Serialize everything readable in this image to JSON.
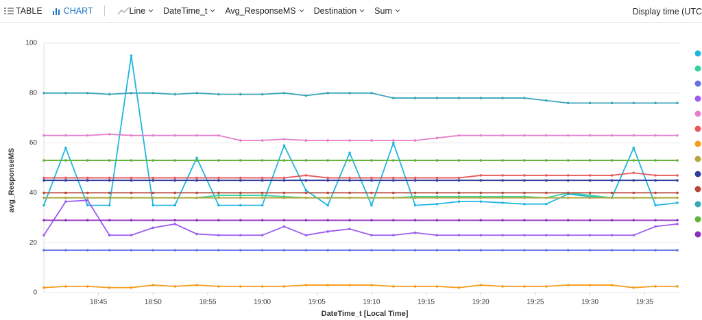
{
  "toolbar": {
    "table": "TABLE",
    "chart": "CHART",
    "chart_type": "Line",
    "x_column": "DateTime_t",
    "y_column": "Avg_ResponseMS",
    "split_column": "Destination",
    "aggregation": "Sum",
    "display_time": "Display time (UTC"
  },
  "chart_data": {
    "type": "line",
    "ylabel": "avg_ResponseMS",
    "xlabel": "DateTime_t [Local Time]",
    "x": [
      "18:40",
      "18:42",
      "18:44",
      "18:46",
      "18:48",
      "18:50",
      "18:52",
      "18:54",
      "18:56",
      "18:58",
      "19:00",
      "19:02",
      "19:04",
      "19:06",
      "19:08",
      "19:10",
      "19:12",
      "19:14",
      "19:16",
      "19:18",
      "19:20",
      "19:22",
      "19:24",
      "19:26",
      "19:28",
      "19:30",
      "19:32",
      "19:34",
      "19:36",
      "19:38"
    ],
    "xlim": [
      "18:40",
      "19:38"
    ],
    "xticks": [
      "18:45",
      "18:50",
      "18:55",
      "19:00",
      "19:05",
      "19:10",
      "19:15",
      "19:20",
      "19:25",
      "19:30",
      "19:35"
    ],
    "ylim": [
      0,
      100
    ],
    "yticks": [
      0,
      20,
      40,
      60,
      80,
      100
    ],
    "grid": true,
    "legend": "right",
    "series": [
      {
        "color": "#1fb6e0",
        "values": [
          35,
          58,
          35,
          35,
          95,
          35,
          35,
          54,
          35,
          35,
          35,
          59,
          41,
          35,
          56,
          35,
          60,
          35,
          35.5,
          36.5,
          36.5,
          36,
          35.5,
          35.5,
          39.5,
          38.5,
          38,
          58,
          35,
          36
        ]
      },
      {
        "color": "#34d399",
        "values": [
          38,
          38,
          38,
          38,
          38,
          38,
          38,
          38,
          39,
          39,
          39,
          38.5,
          38,
          38,
          38,
          38,
          38,
          38.5,
          38.5,
          38.5,
          38.5,
          38.5,
          38.5,
          38,
          40,
          39,
          38,
          38,
          38,
          38
        ]
      },
      {
        "color": "#6470e6",
        "values": [
          17,
          17,
          17,
          17,
          17,
          17,
          17,
          17,
          17,
          17,
          17,
          17,
          17,
          17,
          17,
          17,
          17,
          17,
          17,
          17,
          17,
          17,
          17,
          17,
          17,
          17,
          17,
          17,
          17,
          17
        ]
      },
      {
        "color": "#9b5cf0",
        "values": [
          23,
          36.5,
          37,
          23,
          23,
          26,
          27.5,
          23.5,
          23,
          23,
          23,
          26.5,
          23,
          24.5,
          25.5,
          23,
          23,
          24,
          23,
          23,
          23,
          23,
          23,
          23,
          23,
          23,
          23,
          23,
          26.5,
          27.5
        ]
      },
      {
        "color": "#e57fcb",
        "values": [
          63,
          63,
          63,
          63.5,
          63,
          63,
          63,
          63,
          63,
          61,
          61,
          61.5,
          61,
          61,
          61,
          61,
          61,
          61,
          62,
          63,
          63,
          63,
          63,
          63,
          63,
          63,
          63,
          63,
          63,
          63
        ]
      },
      {
        "color": "#e8575a",
        "values": [
          46,
          46,
          46,
          46,
          46,
          46,
          46,
          46,
          46,
          46,
          46,
          46,
          47,
          46,
          46,
          46,
          46,
          46,
          46,
          46,
          47,
          47,
          47,
          47,
          47,
          47,
          47,
          48,
          47,
          47
        ]
      },
      {
        "color": "#f59c1a",
        "values": [
          2,
          2.5,
          2.5,
          2,
          2,
          3,
          2.5,
          3,
          2.5,
          2.5,
          2.5,
          2.5,
          3,
          3,
          3,
          3,
          2.5,
          2.5,
          2.5,
          2,
          3,
          2.5,
          2.5,
          2.5,
          3,
          3,
          3,
          2,
          2.5,
          2.5
        ]
      },
      {
        "color": "#b5a642",
        "values": [
          38,
          38,
          38,
          38,
          38,
          38,
          38,
          38,
          38,
          38,
          38,
          38,
          38,
          38,
          38,
          38,
          38,
          38,
          38,
          38,
          38,
          38,
          38,
          38,
          38,
          38,
          38,
          38,
          38,
          38
        ]
      },
      {
        "color": "#2f3d9e",
        "values": [
          45,
          45,
          45,
          45,
          45,
          45,
          45,
          45,
          45,
          45,
          45,
          45,
          45,
          45,
          45,
          45,
          45,
          45,
          45,
          45,
          45,
          45,
          45,
          45,
          45,
          45,
          45,
          45,
          45,
          45
        ]
      },
      {
        "color": "#b5473a",
        "values": [
          40,
          40,
          40,
          40,
          40,
          40,
          40,
          40,
          40,
          40,
          40,
          40,
          40,
          40,
          40,
          40,
          40,
          40,
          40,
          40,
          40,
          40,
          40,
          40,
          40,
          40,
          40,
          40,
          40,
          40
        ]
      },
      {
        "color": "#3aa6b9",
        "values": [
          80,
          80,
          80,
          79.5,
          80,
          80,
          79.5,
          80,
          79.5,
          79.5,
          79.5,
          80,
          79,
          80,
          80,
          80,
          78,
          78,
          78,
          78,
          78,
          78,
          78,
          77,
          76,
          76,
          76,
          76,
          76,
          76
        ]
      },
      {
        "color": "#62b33a",
        "values": [
          53,
          53,
          53,
          53,
          53,
          53,
          53,
          53,
          53,
          53,
          53,
          53,
          53,
          53,
          53,
          53,
          53,
          53,
          53,
          53,
          53,
          53,
          53,
          53,
          53,
          53,
          53,
          53,
          53,
          53
        ]
      },
      {
        "color": "#8e2eb8",
        "values": [
          29,
          29,
          29,
          29,
          29,
          29,
          29,
          29,
          29,
          29,
          29,
          29,
          29,
          29,
          29,
          29,
          29,
          29,
          29,
          29,
          29,
          29,
          29,
          29,
          29,
          29,
          29,
          29,
          29,
          29
        ]
      }
    ]
  }
}
